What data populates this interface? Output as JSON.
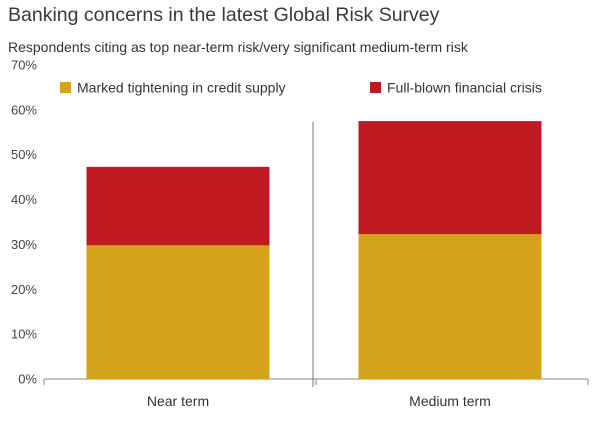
{
  "chart_data": {
    "type": "bar",
    "stacked": true,
    "title": "Banking concerns in the latest Global Risk Survey",
    "subtitle": "Respondents citing as top near-term risk/very significant medium-term risk",
    "categories": [
      "Near term",
      "Medium term"
    ],
    "series": [
      {
        "name": "Marked tightening in credit supply",
        "values": [
          29.8,
          32.3
        ],
        "color": "#D4A21B"
      },
      {
        "name": "Full-blown financial crisis",
        "values": [
          17.5,
          25.2
        ],
        "color": "#BF1A22"
      }
    ],
    "ylim": [
      0,
      70
    ],
    "yticks": [
      "0%",
      "10%",
      "20%",
      "30%",
      "40%",
      "50%",
      "60%",
      "70%"
    ],
    "legend": "top",
    "grid": false
  }
}
